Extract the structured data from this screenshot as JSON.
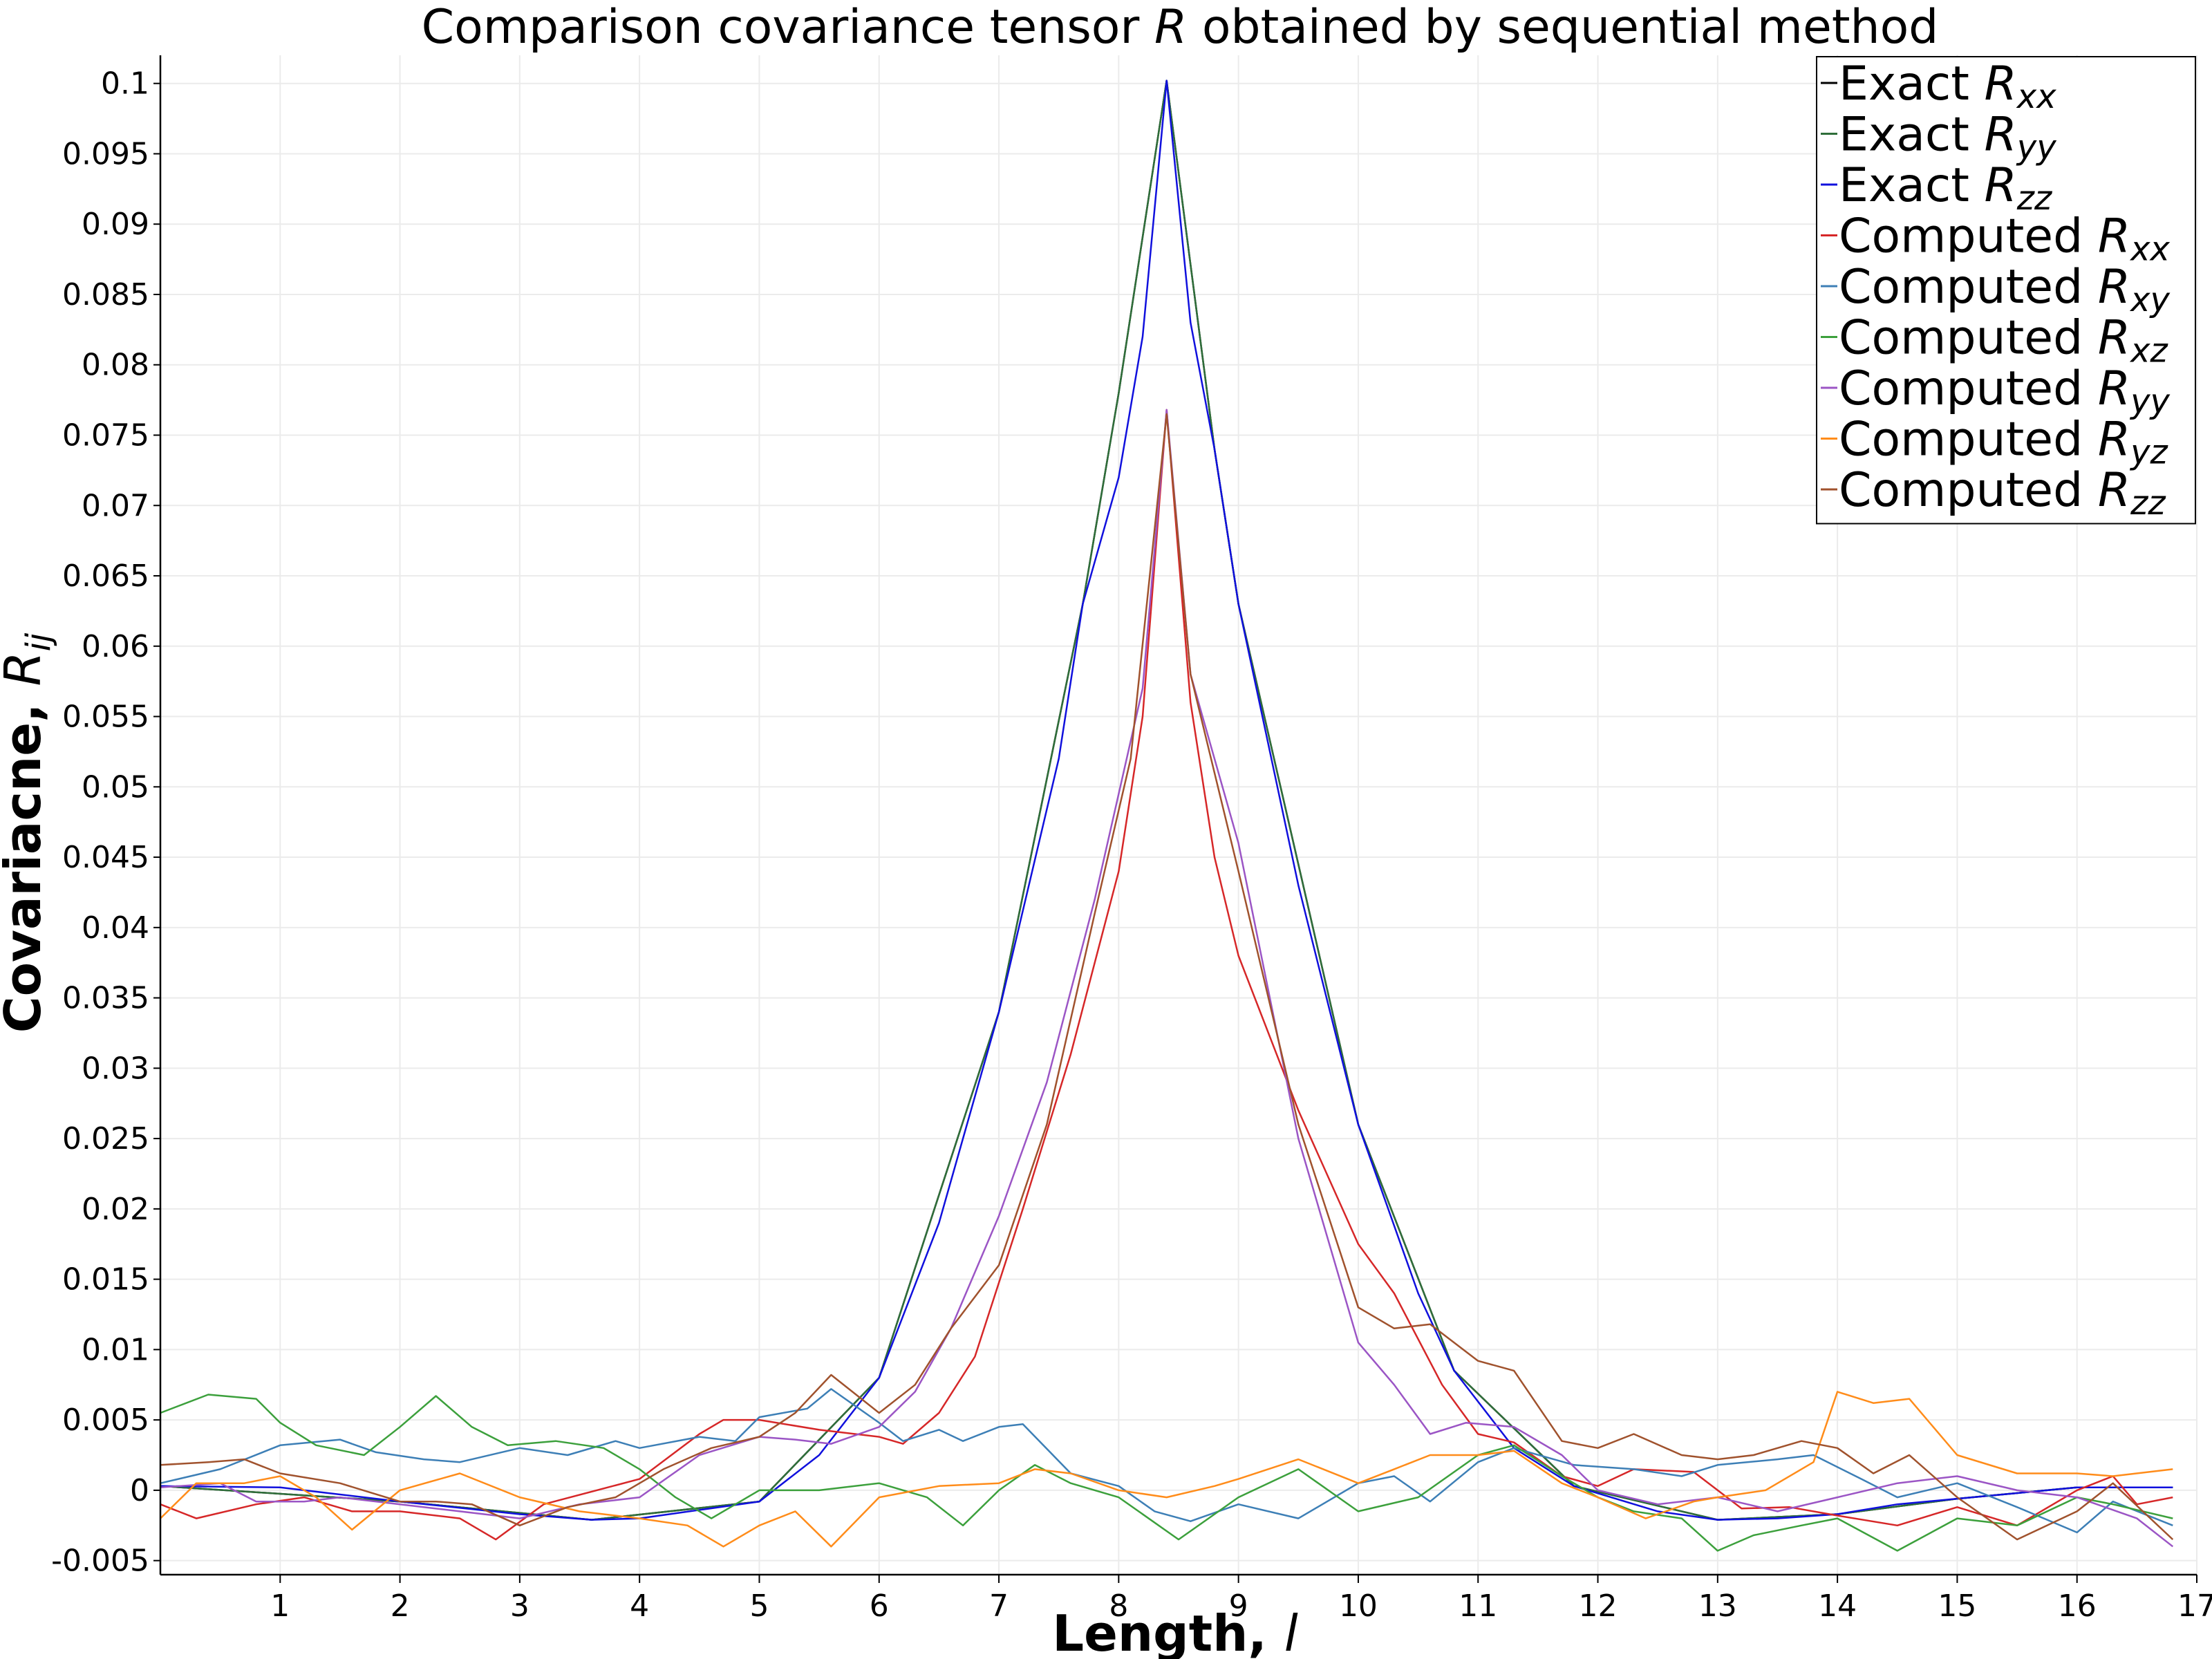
{
  "chart_data": {
    "type": "line",
    "title_parts": [
      "Comparison covariance tensor ",
      "R",
      " obtained by sequential method"
    ],
    "xlabel_parts": [
      "Length, ",
      "l"
    ],
    "ylabel_parts": [
      "Covariacne, ",
      "R",
      "ij"
    ],
    "xlim": [
      0,
      17
    ],
    "ylim": [
      -0.006,
      0.102
    ],
    "x_ticks": [
      "1",
      "2",
      "3",
      "4",
      "5",
      "6",
      "7",
      "8",
      "9",
      "10",
      "11",
      "12",
      "13",
      "14",
      "15",
      "16",
      "17"
    ],
    "y_ticks": [
      "-0.005",
      "0",
      "0.005",
      "0.01",
      "0.015",
      "0.02",
      "0.025",
      "0.03",
      "0.035",
      "0.04",
      "0.045",
      "0.05",
      "0.055",
      "0.06",
      "0.065",
      "0.07",
      "0.075",
      "0.08",
      "0.085",
      "0.09",
      "0.095",
      "0.1"
    ],
    "grid": true,
    "legend_position": "top-right",
    "series": [
      {
        "name_prefix": "Exact ",
        "name_sym": "R",
        "name_sub": "xx",
        "color": "#000000",
        "x": [
          0,
          2,
          3.6,
          5,
          6,
          7,
          7.7,
          8,
          8.4,
          8.8,
          9,
          10,
          10.8,
          11.8,
          13,
          14,
          15,
          16,
          16.8
        ],
        "y": [
          0.0003,
          -0.0008,
          -0.0021,
          -0.0008,
          0.008,
          0.034,
          0.063,
          0.078,
          0.1002,
          0.074,
          0.063,
          0.026,
          0.0085,
          0.0003,
          -0.0021,
          -0.0017,
          -0.0006,
          0.0002,
          0.0002
        ]
      },
      {
        "name_prefix": "Exact ",
        "name_sym": "R",
        "name_sub": "yy",
        "color": "#2f6e3a",
        "x": [
          0,
          2,
          3.6,
          5,
          6,
          7,
          7.7,
          8,
          8.4,
          8.8,
          9,
          10,
          10.8,
          11.8,
          13,
          14,
          15,
          16,
          16.8
        ],
        "y": [
          0.0003,
          -0.0008,
          -0.0021,
          -0.0008,
          0.008,
          0.034,
          0.063,
          0.078,
          0.1002,
          0.074,
          0.063,
          0.026,
          0.0085,
          0.0003,
          -0.0021,
          -0.0017,
          -0.0006,
          0.0002,
          0.0002
        ]
      },
      {
        "name_prefix": "Exact ",
        "name_sym": "R",
        "name_sub": "zz",
        "color": "#1010dd",
        "x": [
          0,
          1,
          2,
          3,
          3.6,
          4,
          5,
          5.5,
          6,
          6.5,
          7,
          7.5,
          7.7,
          8,
          8.2,
          8.4,
          8.6,
          8.8,
          9,
          9.5,
          10,
          10.5,
          10.8,
          11.3,
          11.8,
          12.5,
          13,
          13.5,
          14,
          14.5,
          15,
          15.5,
          16,
          16.8
        ],
        "y": [
          0.0003,
          0.0002,
          -0.0008,
          -0.0017,
          -0.0021,
          -0.002,
          -0.0008,
          0.0025,
          0.008,
          0.019,
          0.034,
          0.052,
          0.063,
          0.072,
          0.082,
          0.1002,
          0.083,
          0.074,
          0.063,
          0.043,
          0.026,
          0.014,
          0.0085,
          0.003,
          0.0003,
          -0.0015,
          -0.0021,
          -0.002,
          -0.0017,
          -0.001,
          -0.0006,
          -0.0002,
          0.0002,
          0.0002
        ]
      },
      {
        "name_prefix": "Computed ",
        "name_sym": "R",
        "name_sub": "xx",
        "color": "#d62728",
        "x": [
          0,
          0.3,
          0.8,
          1.2,
          1.6,
          2,
          2.5,
          2.8,
          3.2,
          4,
          4.5,
          4.7,
          5,
          5.5,
          6,
          6.2,
          6.5,
          6.8,
          7.2,
          7.6,
          8,
          8.2,
          8.4,
          8.6,
          8.8,
          9,
          9.5,
          10,
          10.3,
          10.7,
          11,
          11.3,
          11.7,
          12,
          12.3,
          12.8,
          13.2,
          13.6,
          14,
          14.5,
          15,
          15.5,
          16,
          16.3,
          16.5,
          16.8
        ],
        "y": [
          -0.001,
          -0.002,
          -0.001,
          -0.0005,
          -0.0015,
          -0.0015,
          -0.002,
          -0.0035,
          -0.001,
          0.0008,
          0.004,
          0.005,
          0.005,
          0.0043,
          0.0038,
          0.0033,
          0.0055,
          0.0095,
          0.02,
          0.031,
          0.044,
          0.055,
          0.0768,
          0.056,
          0.045,
          0.038,
          0.027,
          0.0175,
          0.014,
          0.0075,
          0.004,
          0.0034,
          0.001,
          0.0003,
          0.0015,
          0.0013,
          -0.0013,
          -0.0012,
          -0.0018,
          -0.0025,
          -0.0012,
          -0.0025,
          0,
          0.001,
          -0.001,
          -0.0005
        ]
      },
      {
        "name_prefix": "Computed ",
        "name_sym": "R",
        "name_sub": "xy",
        "color": "#3d7fb6",
        "x": [
          0,
          0.5,
          1,
          1.5,
          1.8,
          2.2,
          2.5,
          3,
          3.4,
          3.8,
          4,
          4.5,
          4.8,
          5,
          5.4,
          5.6,
          6,
          6.2,
          6.5,
          6.7,
          7,
          7.2,
          7.6,
          8,
          8.3,
          8.6,
          9,
          9.5,
          10,
          10.3,
          10.6,
          11,
          11.3,
          11.8,
          12.3,
          12.7,
          13,
          13.5,
          13.8,
          14.2,
          14.5,
          15,
          15.5,
          16,
          16.3,
          16.8
        ],
        "y": [
          0.0005,
          0.0015,
          0.0032,
          0.0036,
          0.0027,
          0.0022,
          0.002,
          0.003,
          0.0025,
          0.0035,
          0.003,
          0.0038,
          0.0035,
          0.0052,
          0.0058,
          0.0072,
          0.0048,
          0.0035,
          0.0043,
          0.0035,
          0.0045,
          0.0047,
          0.0012,
          0.0003,
          -0.0015,
          -0.0022,
          -0.001,
          -0.002,
          0.0005,
          0.001,
          -0.0008,
          0.002,
          0.003,
          0.0018,
          0.0015,
          0.001,
          0.0018,
          0.0022,
          0.0025,
          0.0008,
          -0.0005,
          0.0005,
          -0.0012,
          -0.003,
          -0.0008,
          -0.0025
        ]
      },
      {
        "name_prefix": "Computed ",
        "name_sym": "R",
        "name_sub": "xz",
        "color": "#3ca03c",
        "x": [
          0,
          0.4,
          0.8,
          1,
          1.3,
          1.7,
          2,
          2.3,
          2.6,
          2.9,
          3.3,
          3.7,
          4,
          4.3,
          4.6,
          5,
          5.5,
          6,
          6.4,
          6.7,
          7,
          7.3,
          7.6,
          8,
          8.5,
          9,
          9.5,
          10,
          10.5,
          11,
          11.3,
          11.7,
          12,
          12.3,
          12.7,
          13,
          13.3,
          13.7,
          14,
          14.5,
          15,
          15.5,
          16,
          16.3,
          16.8
        ],
        "y": [
          0.0055,
          0.0068,
          0.0065,
          0.0048,
          0.0032,
          0.0025,
          0.0045,
          0.0067,
          0.0045,
          0.0032,
          0.0035,
          0.003,
          0.0015,
          -0.0005,
          -0.002,
          0,
          0,
          0.0005,
          -0.0005,
          -0.0025,
          0,
          0.0018,
          0.0005,
          -0.0005,
          -0.0035,
          -0.0005,
          0.0015,
          -0.0015,
          -0.0005,
          0.0025,
          0.0032,
          0.001,
          -0.0005,
          -0.0015,
          -0.002,
          -0.0043,
          -0.0032,
          -0.0025,
          -0.002,
          -0.0043,
          -0.002,
          -0.0025,
          -0.0005,
          -0.001,
          -0.002
        ]
      },
      {
        "name_prefix": "Computed ",
        "name_sym": "R",
        "name_sub": "yy",
        "color": "#9b55c5",
        "x": [
          0,
          0.5,
          0.8,
          1.2,
          1.5,
          2,
          2.5,
          3,
          3.5,
          4,
          4.5,
          5,
          5.3,
          5.6,
          6,
          6.3,
          6.6,
          7,
          7.4,
          7.8,
          8.2,
          8.4,
          8.6,
          9,
          9.5,
          10,
          10.3,
          10.6,
          10.9,
          11.3,
          11.7,
          12,
          12.5,
          13,
          13.5,
          14,
          14.5,
          15,
          15.5,
          16,
          16.5,
          16.8
        ],
        "y": [
          0.0002,
          0.0005,
          -0.0008,
          -0.0008,
          -0.0005,
          -0.001,
          -0.0015,
          -0.002,
          -0.001,
          -0.0005,
          0.0025,
          0.0038,
          0.0036,
          0.0033,
          0.0045,
          0.007,
          0.0115,
          0.0195,
          0.029,
          0.042,
          0.057,
          0.0768,
          0.058,
          0.046,
          0.025,
          0.0105,
          0.0075,
          0.004,
          0.0048,
          0.0045,
          0.0025,
          0,
          -0.001,
          -0.0005,
          -0.0015,
          -0.0005,
          0.0005,
          0.001,
          0,
          -0.0005,
          -0.002,
          -0.004
        ]
      },
      {
        "name_prefix": "Computed ",
        "name_sym": "R",
        "name_sub": "yz",
        "color": "#ff8c1a",
        "x": [
          0,
          0.3,
          0.7,
          1,
          1.3,
          1.6,
          2,
          2.5,
          3,
          3.5,
          4,
          4.4,
          4.7,
          5,
          5.3,
          5.6,
          6,
          6.5,
          7,
          7.3,
          7.6,
          8,
          8.4,
          8.8,
          9,
          9.5,
          10,
          10.3,
          10.6,
          11,
          11.3,
          11.7,
          12,
          12.4,
          12.8,
          13,
          13.4,
          13.8,
          14,
          14.3,
          14.6,
          15,
          15.5,
          16,
          16.3,
          16.8
        ],
        "y": [
          -0.002,
          0.0005,
          0.0005,
          0.001,
          -0.0005,
          -0.0028,
          0,
          0.0012,
          -0.0005,
          -0.0015,
          -0.002,
          -0.0025,
          -0.004,
          -0.0025,
          -0.0015,
          -0.004,
          -0.0005,
          0.0003,
          0.0005,
          0.0015,
          0.0012,
          0,
          -0.0005,
          0.0003,
          0.0008,
          0.0022,
          0.0005,
          0.0015,
          0.0025,
          0.0025,
          0.0028,
          0.0005,
          -0.0005,
          -0.002,
          -0.0008,
          -0.0005,
          0,
          0.002,
          0.007,
          0.0062,
          0.0065,
          0.0025,
          0.0012,
          0.0012,
          0.001,
          0.0015
        ]
      },
      {
        "name_prefix": "Computed ",
        "name_sym": "R",
        "name_sub": "zz",
        "color": "#a0522d",
        "x": [
          0,
          0.4,
          0.7,
          1,
          1.5,
          2,
          2.3,
          2.6,
          3,
          3.4,
          3.8,
          4.2,
          4.6,
          5,
          5.3,
          5.6,
          6,
          6.3,
          6.6,
          7,
          7.4,
          7.8,
          8.1,
          8.4,
          8.6,
          9,
          9.5,
          10,
          10.3,
          10.6,
          11,
          11.3,
          11.7,
          12,
          12.3,
          12.7,
          13,
          13.3,
          13.7,
          14,
          14.3,
          14.6,
          15,
          15.5,
          16,
          16.3,
          16.8
        ],
        "y": [
          0.0018,
          0.002,
          0.0022,
          0.0012,
          0.0005,
          -0.0008,
          -0.0008,
          -0.001,
          -0.0025,
          -0.0012,
          -0.0005,
          0.0015,
          0.003,
          0.0038,
          0.0055,
          0.0082,
          0.0055,
          0.0075,
          0.0115,
          0.016,
          0.026,
          0.041,
          0.052,
          0.0765,
          0.058,
          0.044,
          0.026,
          0.013,
          0.0115,
          0.0118,
          0.0092,
          0.0085,
          0.0035,
          0.003,
          0.004,
          0.0025,
          0.0022,
          0.0025,
          0.0035,
          0.003,
          0.0012,
          0.0025,
          -0.0005,
          -0.0035,
          -0.0015,
          0.0005,
          -0.0035
        ]
      }
    ]
  }
}
